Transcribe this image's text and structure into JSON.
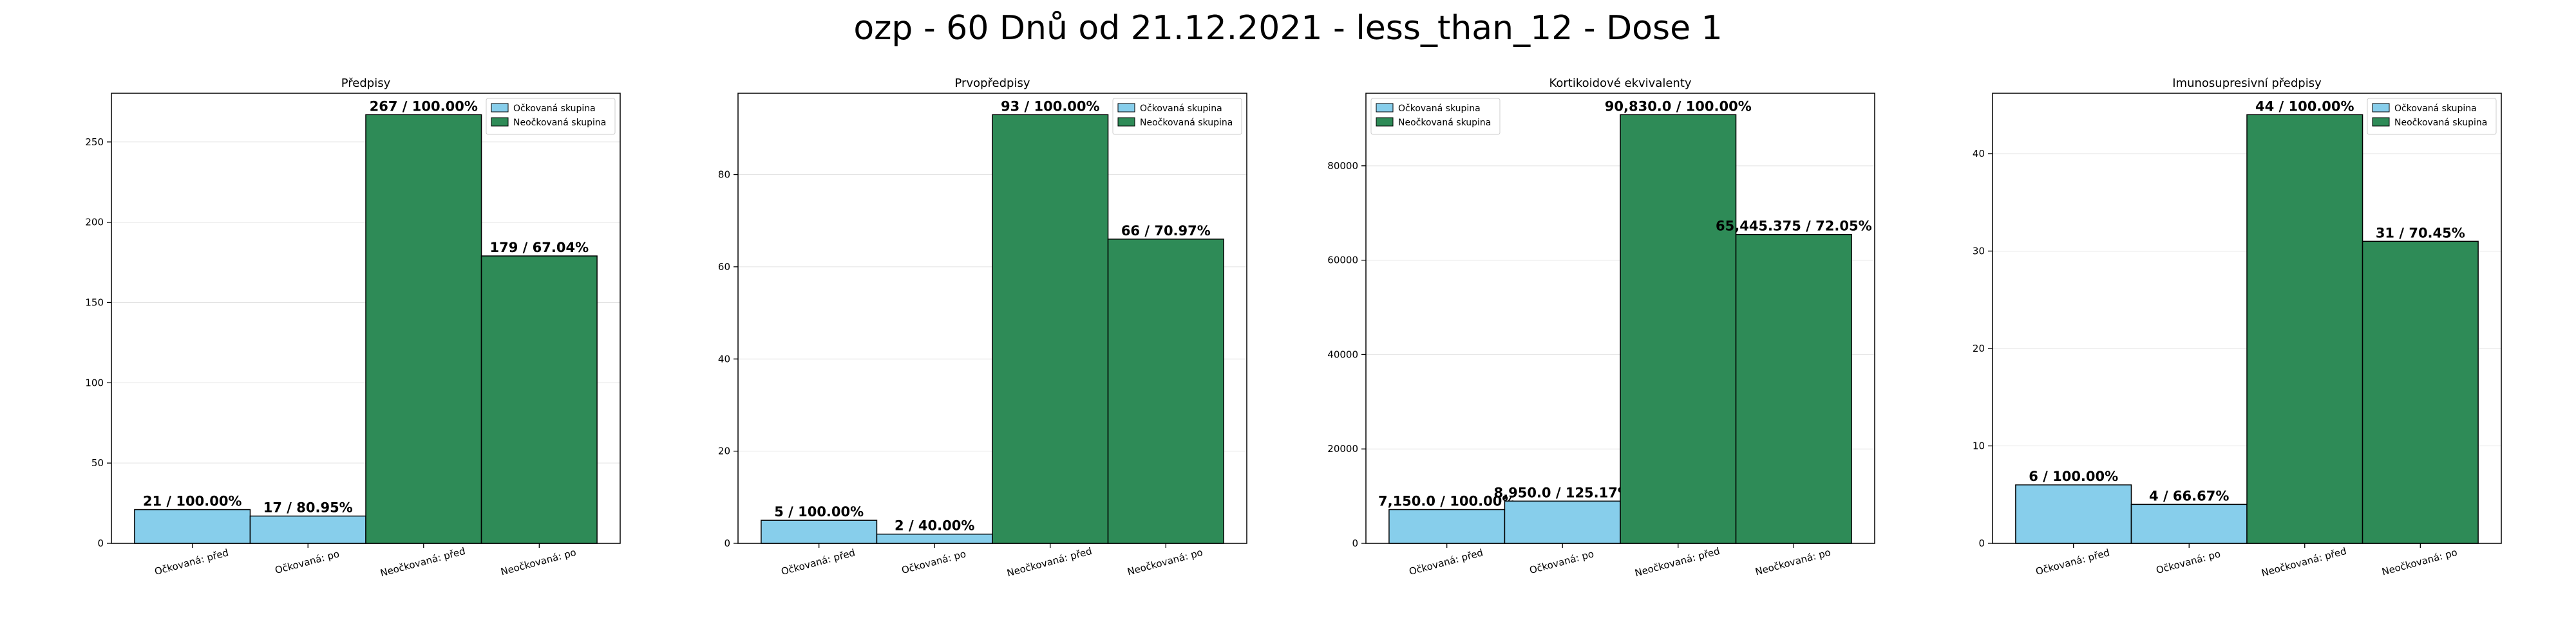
{
  "title": "ozp - 60 Dnů od 21.12.2021 - less_than_12 - Dose 1",
  "colors": {
    "vaccinated": "#87ceeb",
    "unvaccinated": "#2e8b57"
  },
  "chart_data": [
    {
      "type": "bar",
      "title": "Předpisy",
      "categories": [
        "Očkovaná: před",
        "Očkovaná: po",
        "Neočkovaná: před",
        "Neočkovaná: po"
      ],
      "values": [
        21,
        17,
        267,
        179
      ],
      "groups": [
        "Očkovaná skupina",
        "Očkovaná skupina",
        "Neočkovaná skupina",
        "Neočkovaná skupina"
      ],
      "bar_labels": [
        "21 / 100.00%",
        "17 / 80.95%",
        "267 / 100.00%",
        "179 / 67.04%"
      ],
      "ylim": [
        0,
        280.35
      ],
      "yticks": [
        0,
        50,
        100,
        150,
        200,
        250
      ],
      "ytick_labels": [
        "0",
        "50",
        "100",
        "150",
        "200",
        "250"
      ],
      "legend": [
        "Očkovaná skupina",
        "Neočkovaná skupina"
      ],
      "legend_loc": "upper right",
      "grid": "y"
    },
    {
      "type": "bar",
      "title": "Prvopředpisy",
      "categories": [
        "Očkovaná: před",
        "Očkovaná: po",
        "Neočkovaná: před",
        "Neočkovaná: po"
      ],
      "values": [
        5,
        2,
        93,
        66
      ],
      "groups": [
        "Očkovaná skupina",
        "Očkovaná skupina",
        "Neočkovaná skupina",
        "Neočkovaná skupina"
      ],
      "bar_labels": [
        "5 / 100.00%",
        "2 / 40.00%",
        "93 / 100.00%",
        "66 / 70.97%"
      ],
      "ylim": [
        0,
        97.65
      ],
      "yticks": [
        0,
        20,
        40,
        60,
        80
      ],
      "ytick_labels": [
        "0",
        "20",
        "40",
        "60",
        "80"
      ],
      "legend": [
        "Očkovaná skupina",
        "Neočkovaná skupina"
      ],
      "legend_loc": "upper right",
      "grid": "y"
    },
    {
      "type": "bar",
      "title": "Kortikoidové ekvivalenty",
      "categories": [
        "Očkovaná: před",
        "Očkovaná: po",
        "Neočkovaná: před",
        "Neočkovaná: po"
      ],
      "values": [
        7150.0,
        8950.0,
        90830.0,
        65445.375
      ],
      "groups": [
        "Očkovaná skupina",
        "Očkovaná skupina",
        "Neočkovaná skupina",
        "Neočkovaná skupina"
      ],
      "bar_labels": [
        "7,150.0 / 100.00%",
        "8,950.0 / 125.17%",
        "90,830.0 / 100.00%",
        "65,445.375 / 72.05%"
      ],
      "ylim": [
        0,
        95371.5
      ],
      "yticks": [
        0,
        20000,
        40000,
        60000,
        80000
      ],
      "ytick_labels": [
        "0",
        "20000",
        "40000",
        "60000",
        "80000"
      ],
      "legend": [
        "Očkovaná skupina",
        "Neočkovaná skupina"
      ],
      "legend_loc": "upper left",
      "grid": "y"
    },
    {
      "type": "bar",
      "title": "Imunosupresivní předpisy",
      "categories": [
        "Očkovaná: před",
        "Očkovaná: po",
        "Neočkovaná: před",
        "Neočkovaná: po"
      ],
      "values": [
        6,
        4,
        44,
        31
      ],
      "groups": [
        "Očkovaná skupina",
        "Očkovaná skupina",
        "Neočkovaná skupina",
        "Neočkovaná skupina"
      ],
      "bar_labels": [
        "6 / 100.00%",
        "4 / 66.67%",
        "44 / 100.00%",
        "31 / 70.45%"
      ],
      "ylim": [
        0,
        46.2
      ],
      "yticks": [
        0,
        10,
        20,
        30,
        40
      ],
      "ytick_labels": [
        "0",
        "10",
        "20",
        "30",
        "40"
      ],
      "legend": [
        "Očkovaná skupina",
        "Neočkovaná skupina"
      ],
      "legend_loc": "upper right",
      "grid": "y"
    }
  ]
}
